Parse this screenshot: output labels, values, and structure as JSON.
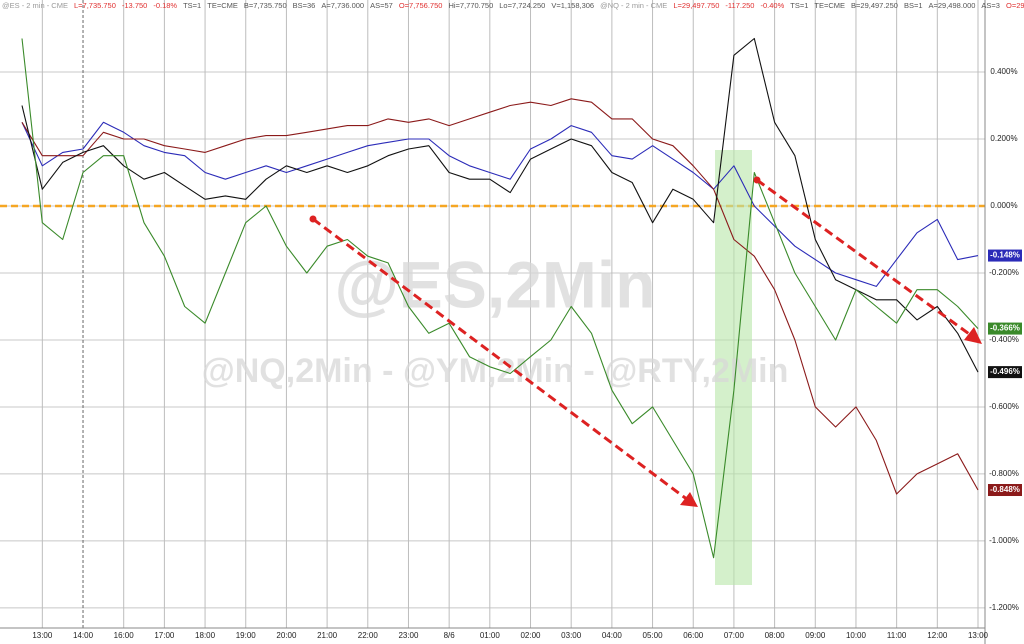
{
  "header": [
    {
      "text": "@ES - 2 min - CME",
      "color": "#9a9a9a"
    },
    {
      "text": "L=7,735.750",
      "color": "#e03030"
    },
    {
      "text": "-13.750",
      "color": "#e03030"
    },
    {
      "text": "-0.18%",
      "color": "#e03030"
    },
    {
      "text": "TS=1",
      "color": "#555555"
    },
    {
      "text": "TE=CME",
      "color": "#555555"
    },
    {
      "text": "B=7,735.750",
      "color": "#555555"
    },
    {
      "text": "BS=36",
      "color": "#555555"
    },
    {
      "text": "A=7,736.000",
      "color": "#555555"
    },
    {
      "text": "AS=57",
      "color": "#555555"
    },
    {
      "text": "O=7,756.750",
      "color": "#e03030"
    },
    {
      "text": "Hi=7,770.750",
      "color": "#555555"
    },
    {
      "text": "Lo=7,724.250",
      "color": "#555555"
    },
    {
      "text": "V=1,158,306",
      "color": "#555555"
    },
    {
      "text": "@NQ - 2 min - CME",
      "color": "#9a9a9a"
    },
    {
      "text": "L=29,497.750",
      "color": "#e03030"
    },
    {
      "text": "-117.250",
      "color": "#e03030"
    },
    {
      "text": "-0.40%",
      "color": "#e03030"
    },
    {
      "text": "TS=1",
      "color": "#555555"
    },
    {
      "text": "TE=CME",
      "color": "#555555"
    },
    {
      "text": "B=29,497.250",
      "color": "#555555"
    },
    {
      "text": "BS=1",
      "color": "#555555"
    },
    {
      "text": "A=29,498.000",
      "color": "#555555"
    },
    {
      "text": "AS=3",
      "color": "#555555"
    },
    {
      "text": "O=29...",
      "color": "#e03030"
    }
  ],
  "watermark": {
    "main": "@ES,2Min",
    "sub": "@NQ,2Min - @YM,2Min - @RTY,2Min"
  },
  "chart_data": {
    "type": "line",
    "categories": [
      null,
      "13:00",
      null,
      "14:00",
      null,
      "16:00",
      null,
      "17:00",
      null,
      "18:00",
      null,
      "19:00",
      null,
      "20:00",
      null,
      "21:00",
      null,
      "22:00",
      null,
      "23:00",
      null,
      "8/6",
      null,
      "01:00",
      null,
      "02:00",
      null,
      "03:00",
      null,
      "04:00",
      null,
      "05:00",
      null,
      "06:00",
      null,
      "07:00",
      null,
      "08:00",
      null,
      "09:00",
      null,
      "10:00",
      null,
      "11:00",
      null,
      "12:00",
      null,
      "13:00"
    ],
    "ylim": [
      -1.26,
      0.615
    ],
    "yticks": [
      {
        "value": 0.4,
        "label": "0.400%"
      },
      {
        "value": 0.2,
        "label": "0.200%"
      },
      {
        "value": 0,
        "label": "0.000%"
      },
      {
        "value": -0.2,
        "label": "-0.200%"
      },
      {
        "value": -0.4,
        "label": "-0.400%"
      },
      {
        "value": -0.6,
        "label": "-0.600%"
      },
      {
        "value": -0.8,
        "label": "-0.800%"
      },
      {
        "value": -1.0,
        "label": "-1.000%"
      },
      {
        "value": -1.2,
        "label": "-1.200%"
      }
    ],
    "grid": true,
    "reference_line": {
      "value": 0,
      "color": "#f5a623"
    },
    "series": [
      {
        "color": "#2b2bb8",
        "values": [
          0.25,
          0.12,
          0.16,
          0.17,
          0.25,
          0.22,
          0.18,
          0.16,
          0.15,
          0.1,
          0.08,
          0.1,
          0.12,
          0.1,
          0.12,
          0.14,
          0.16,
          0.18,
          0.19,
          0.2,
          0.2,
          0.15,
          0.12,
          0.1,
          0.08,
          0.17,
          0.2,
          0.24,
          0.22,
          0.15,
          0.14,
          0.18,
          0.14,
          0.1,
          0.05,
          0.12,
          0.0,
          -0.06,
          -0.12,
          -0.16,
          -0.2,
          -0.22,
          -0.24,
          -0.16,
          -0.08,
          -0.04,
          -0.16,
          -0.148
        ],
        "value_labels": [
          null,
          null,
          null,
          null,
          null,
          null,
          null,
          null,
          null,
          null,
          null,
          null,
          null,
          null,
          null,
          null,
          null,
          null,
          null,
          null,
          null,
          null,
          null,
          null,
          null,
          null,
          null,
          null,
          null,
          null,
          null,
          null,
          null,
          null,
          null,
          null,
          null,
          null,
          null,
          null,
          null,
          null,
          null,
          null,
          null,
          null,
          null,
          "-0.148%"
        ]
      },
      {
        "color": "#8b1a1a",
        "values": [
          0.25,
          0.15,
          0.15,
          0.15,
          0.22,
          0.2,
          0.2,
          0.18,
          0.17,
          0.16,
          0.18,
          0.2,
          0.21,
          0.21,
          0.22,
          0.23,
          0.24,
          0.24,
          0.26,
          0.25,
          0.26,
          0.24,
          0.26,
          0.28,
          0.3,
          0.31,
          0.3,
          0.32,
          0.31,
          0.26,
          0.26,
          0.2,
          0.18,
          0.12,
          0.05,
          -0.1,
          -0.15,
          -0.25,
          -0.4,
          -0.6,
          -0.66,
          -0.6,
          -0.7,
          -0.86,
          -0.8,
          -0.77,
          -0.74,
          -0.848
        ],
        "value_labels": [
          null,
          null,
          null,
          null,
          null,
          null,
          null,
          null,
          null,
          null,
          null,
          null,
          null,
          null,
          null,
          null,
          null,
          null,
          null,
          null,
          null,
          null,
          null,
          null,
          null,
          null,
          null,
          null,
          null,
          null,
          null,
          null,
          null,
          null,
          null,
          null,
          null,
          null,
          null,
          null,
          null,
          null,
          null,
          null,
          null,
          null,
          null,
          "-0.848%"
        ]
      },
      {
        "color": "#111111",
        "values": [
          0.3,
          0.05,
          0.13,
          0.16,
          0.18,
          0.12,
          0.08,
          0.1,
          0.06,
          0.02,
          0.03,
          0.02,
          0.08,
          0.12,
          0.1,
          0.12,
          0.1,
          0.12,
          0.15,
          0.17,
          0.18,
          0.1,
          0.08,
          0.08,
          0.04,
          0.14,
          0.17,
          0.2,
          0.18,
          0.1,
          0.07,
          -0.05,
          0.05,
          0.02,
          -0.05,
          0.45,
          0.5,
          0.25,
          0.15,
          -0.1,
          -0.22,
          -0.25,
          -0.28,
          -0.28,
          -0.34,
          -0.3,
          -0.38,
          -0.496
        ],
        "value_labels": [
          null,
          null,
          null,
          null,
          null,
          null,
          null,
          null,
          null,
          null,
          null,
          null,
          null,
          null,
          null,
          null,
          null,
          null,
          null,
          null,
          null,
          null,
          null,
          null,
          null,
          null,
          null,
          null,
          null,
          null,
          null,
          null,
          null,
          null,
          null,
          null,
          null,
          null,
          null,
          null,
          null,
          null,
          null,
          null,
          null,
          null,
          null,
          "-0.496%"
        ]
      },
      {
        "color": "#3a8a2a",
        "values": [
          0.5,
          -0.05,
          -0.1,
          0.1,
          0.15,
          0.15,
          -0.05,
          -0.15,
          -0.3,
          -0.35,
          -0.2,
          -0.05,
          0.0,
          -0.12,
          -0.2,
          -0.12,
          -0.1,
          -0.15,
          -0.17,
          -0.3,
          -0.38,
          -0.35,
          -0.45,
          -0.48,
          -0.5,
          -0.45,
          -0.4,
          -0.3,
          -0.38,
          -0.55,
          -0.65,
          -0.6,
          -0.7,
          -0.8,
          -1.05,
          -0.55,
          0.1,
          -0.05,
          -0.2,
          -0.3,
          -0.4,
          -0.25,
          -0.3,
          -0.35,
          -0.25,
          -0.25,
          -0.3,
          -0.366
        ],
        "value_labels": [
          null,
          null,
          null,
          null,
          null,
          null,
          null,
          null,
          null,
          null,
          null,
          null,
          null,
          null,
          null,
          null,
          null,
          null,
          null,
          null,
          null,
          null,
          null,
          null,
          null,
          null,
          null,
          null,
          null,
          null,
          null,
          null,
          null,
          null,
          null,
          null,
          null,
          null,
          null,
          null,
          null,
          null,
          null,
          null,
          null,
          null,
          null,
          "-0.366%"
        ]
      }
    ]
  }
}
